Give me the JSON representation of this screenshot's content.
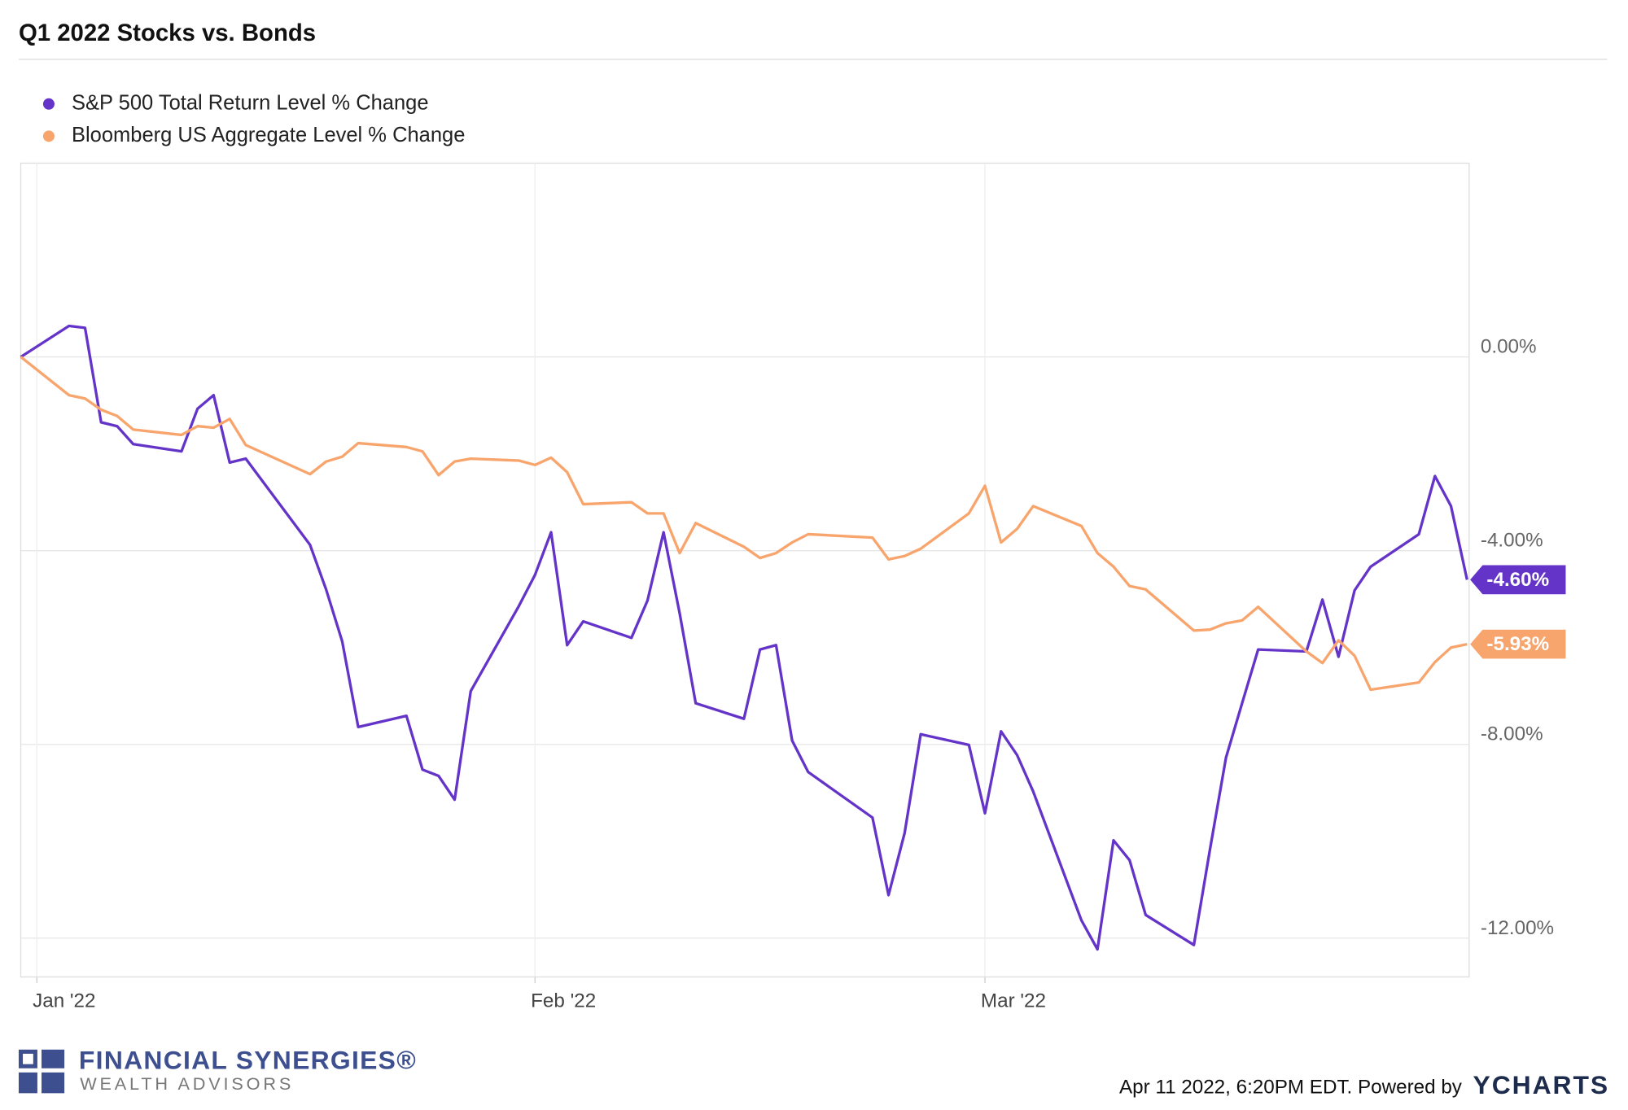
{
  "chart_data": {
    "type": "line",
    "title": "Q1 2022 Stocks vs. Bonds",
    "x": [
      0,
      3,
      4,
      5,
      6,
      7,
      10,
      11,
      12,
      13,
      14,
      18,
      19,
      20,
      21,
      24,
      25,
      26,
      27,
      28,
      31,
      32,
      33,
      34,
      35,
      38,
      39,
      40,
      41,
      42,
      45,
      46,
      47,
      48,
      49,
      53,
      54,
      55,
      56,
      59,
      60,
      61,
      62,
      63,
      66,
      67,
      68,
      69,
      70,
      73,
      74,
      75,
      76,
      77,
      80,
      81,
      82,
      83,
      84,
      87,
      88,
      89,
      90
    ],
    "xlim": [
      0,
      90
    ],
    "xticks": [
      {
        "value": 1,
        "label": "Jan '22"
      },
      {
        "value": 32,
        "label": "Feb '22"
      },
      {
        "value": 60,
        "label": "Mar '22"
      }
    ],
    "ylim": [
      -12.8,
      4
    ],
    "yticks": [
      {
        "value": 0,
        "label": "0.00%"
      },
      {
        "value": -4,
        "label": "-4.00%"
      },
      {
        "value": -8,
        "label": "-8.00%"
      },
      {
        "value": -12,
        "label": "-12.00%"
      }
    ],
    "grid": true,
    "series": [
      {
        "name": "S&P 500 Total Return Level % Change",
        "color": "#6434c9",
        "last_label": "-4.60%",
        "values": [
          0,
          0.64,
          0.6,
          -1.35,
          -1.43,
          -1.8,
          -1.95,
          -1.07,
          -0.79,
          -2.18,
          -2.1,
          -3.88,
          -4.8,
          -5.87,
          -7.64,
          -7.41,
          -8.52,
          -8.65,
          -9.14,
          -6.9,
          -5.14,
          -4.5,
          -3.62,
          -5.95,
          -5.46,
          -5.8,
          -5.03,
          -3.62,
          -5.29,
          -7.15,
          -7.47,
          -6.04,
          -5.95,
          -7.92,
          -8.57,
          -9.51,
          -11.11,
          -9.83,
          -7.79,
          -8.01,
          -9.42,
          -7.73,
          -8.22,
          -8.97,
          -11.63,
          -12.23,
          -9.98,
          -10.39,
          -11.52,
          -12.14,
          -10.17,
          -8.27,
          -7.15,
          -6.04,
          -6.08,
          -5.01,
          -6.19,
          -4.82,
          -4.33,
          -3.66,
          -2.46,
          -3.08,
          -4.6
        ]
      },
      {
        "name": "Bloomberg US Aggregate Level % Change",
        "color": "#f8a56d",
        "last_label": "-5.93%",
        "values": [
          0,
          -0.79,
          -0.86,
          -1.09,
          -1.22,
          -1.5,
          -1.61,
          -1.43,
          -1.46,
          -1.28,
          -1.82,
          -2.42,
          -2.16,
          -2.06,
          -1.78,
          -1.86,
          -1.95,
          -2.44,
          -2.16,
          -2.1,
          -2.14,
          -2.23,
          -2.08,
          -2.38,
          -3.04,
          -3.0,
          -3.23,
          -3.23,
          -4.05,
          -3.43,
          -3.92,
          -4.15,
          -4.05,
          -3.83,
          -3.66,
          -3.73,
          -4.18,
          -4.11,
          -3.96,
          -3.23,
          -2.66,
          -3.83,
          -3.55,
          -3.08,
          -3.49,
          -4.05,
          -4.33,
          -4.73,
          -4.8,
          -5.65,
          -5.63,
          -5.5,
          -5.44,
          -5.16,
          -6.08,
          -6.32,
          -5.85,
          -6.17,
          -6.87,
          -6.72,
          -6.3,
          -6.0,
          -5.93
        ]
      }
    ]
  },
  "footer": {
    "timestamp": "Apr 11 2022, 6:20PM EDT. Powered by",
    "ycharts": "YCHARTS",
    "brand": "FINANCIAL SYNERGIES®",
    "brand_sub": "WEALTH ADVISORS"
  }
}
